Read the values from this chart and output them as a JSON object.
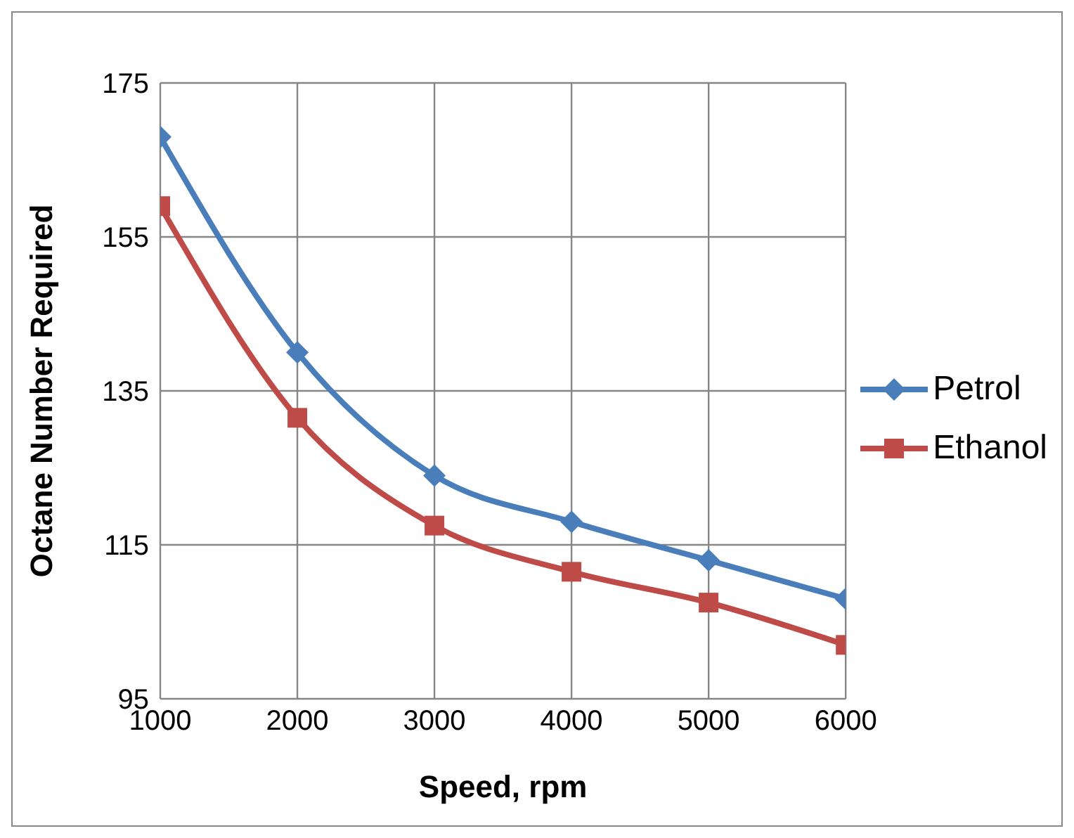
{
  "chart_data": {
    "type": "line",
    "xlabel": "Speed, rpm",
    "ylabel": "Octane Number Required",
    "x": [
      1000,
      2000,
      3000,
      4000,
      5000,
      6000
    ],
    "series": [
      {
        "name": "Petrol",
        "color": "#4a7ebb",
        "marker": "diamond",
        "values": [
          168,
          140,
          124,
          118,
          113,
          108
        ]
      },
      {
        "name": "Ethanol",
        "color": "#be4b48",
        "marker": "square",
        "values": [
          159,
          131.5,
          117.5,
          111.5,
          107.5,
          102
        ]
      }
    ],
    "xlim": [
      1000,
      6000
    ],
    "xticks": [
      1000,
      2000,
      3000,
      4000,
      5000,
      6000
    ],
    "ylim": [
      95,
      175
    ],
    "yticks": [
      95,
      115,
      135,
      155,
      175
    ],
    "grid": true,
    "legend": "right",
    "line_style": "solid"
  }
}
